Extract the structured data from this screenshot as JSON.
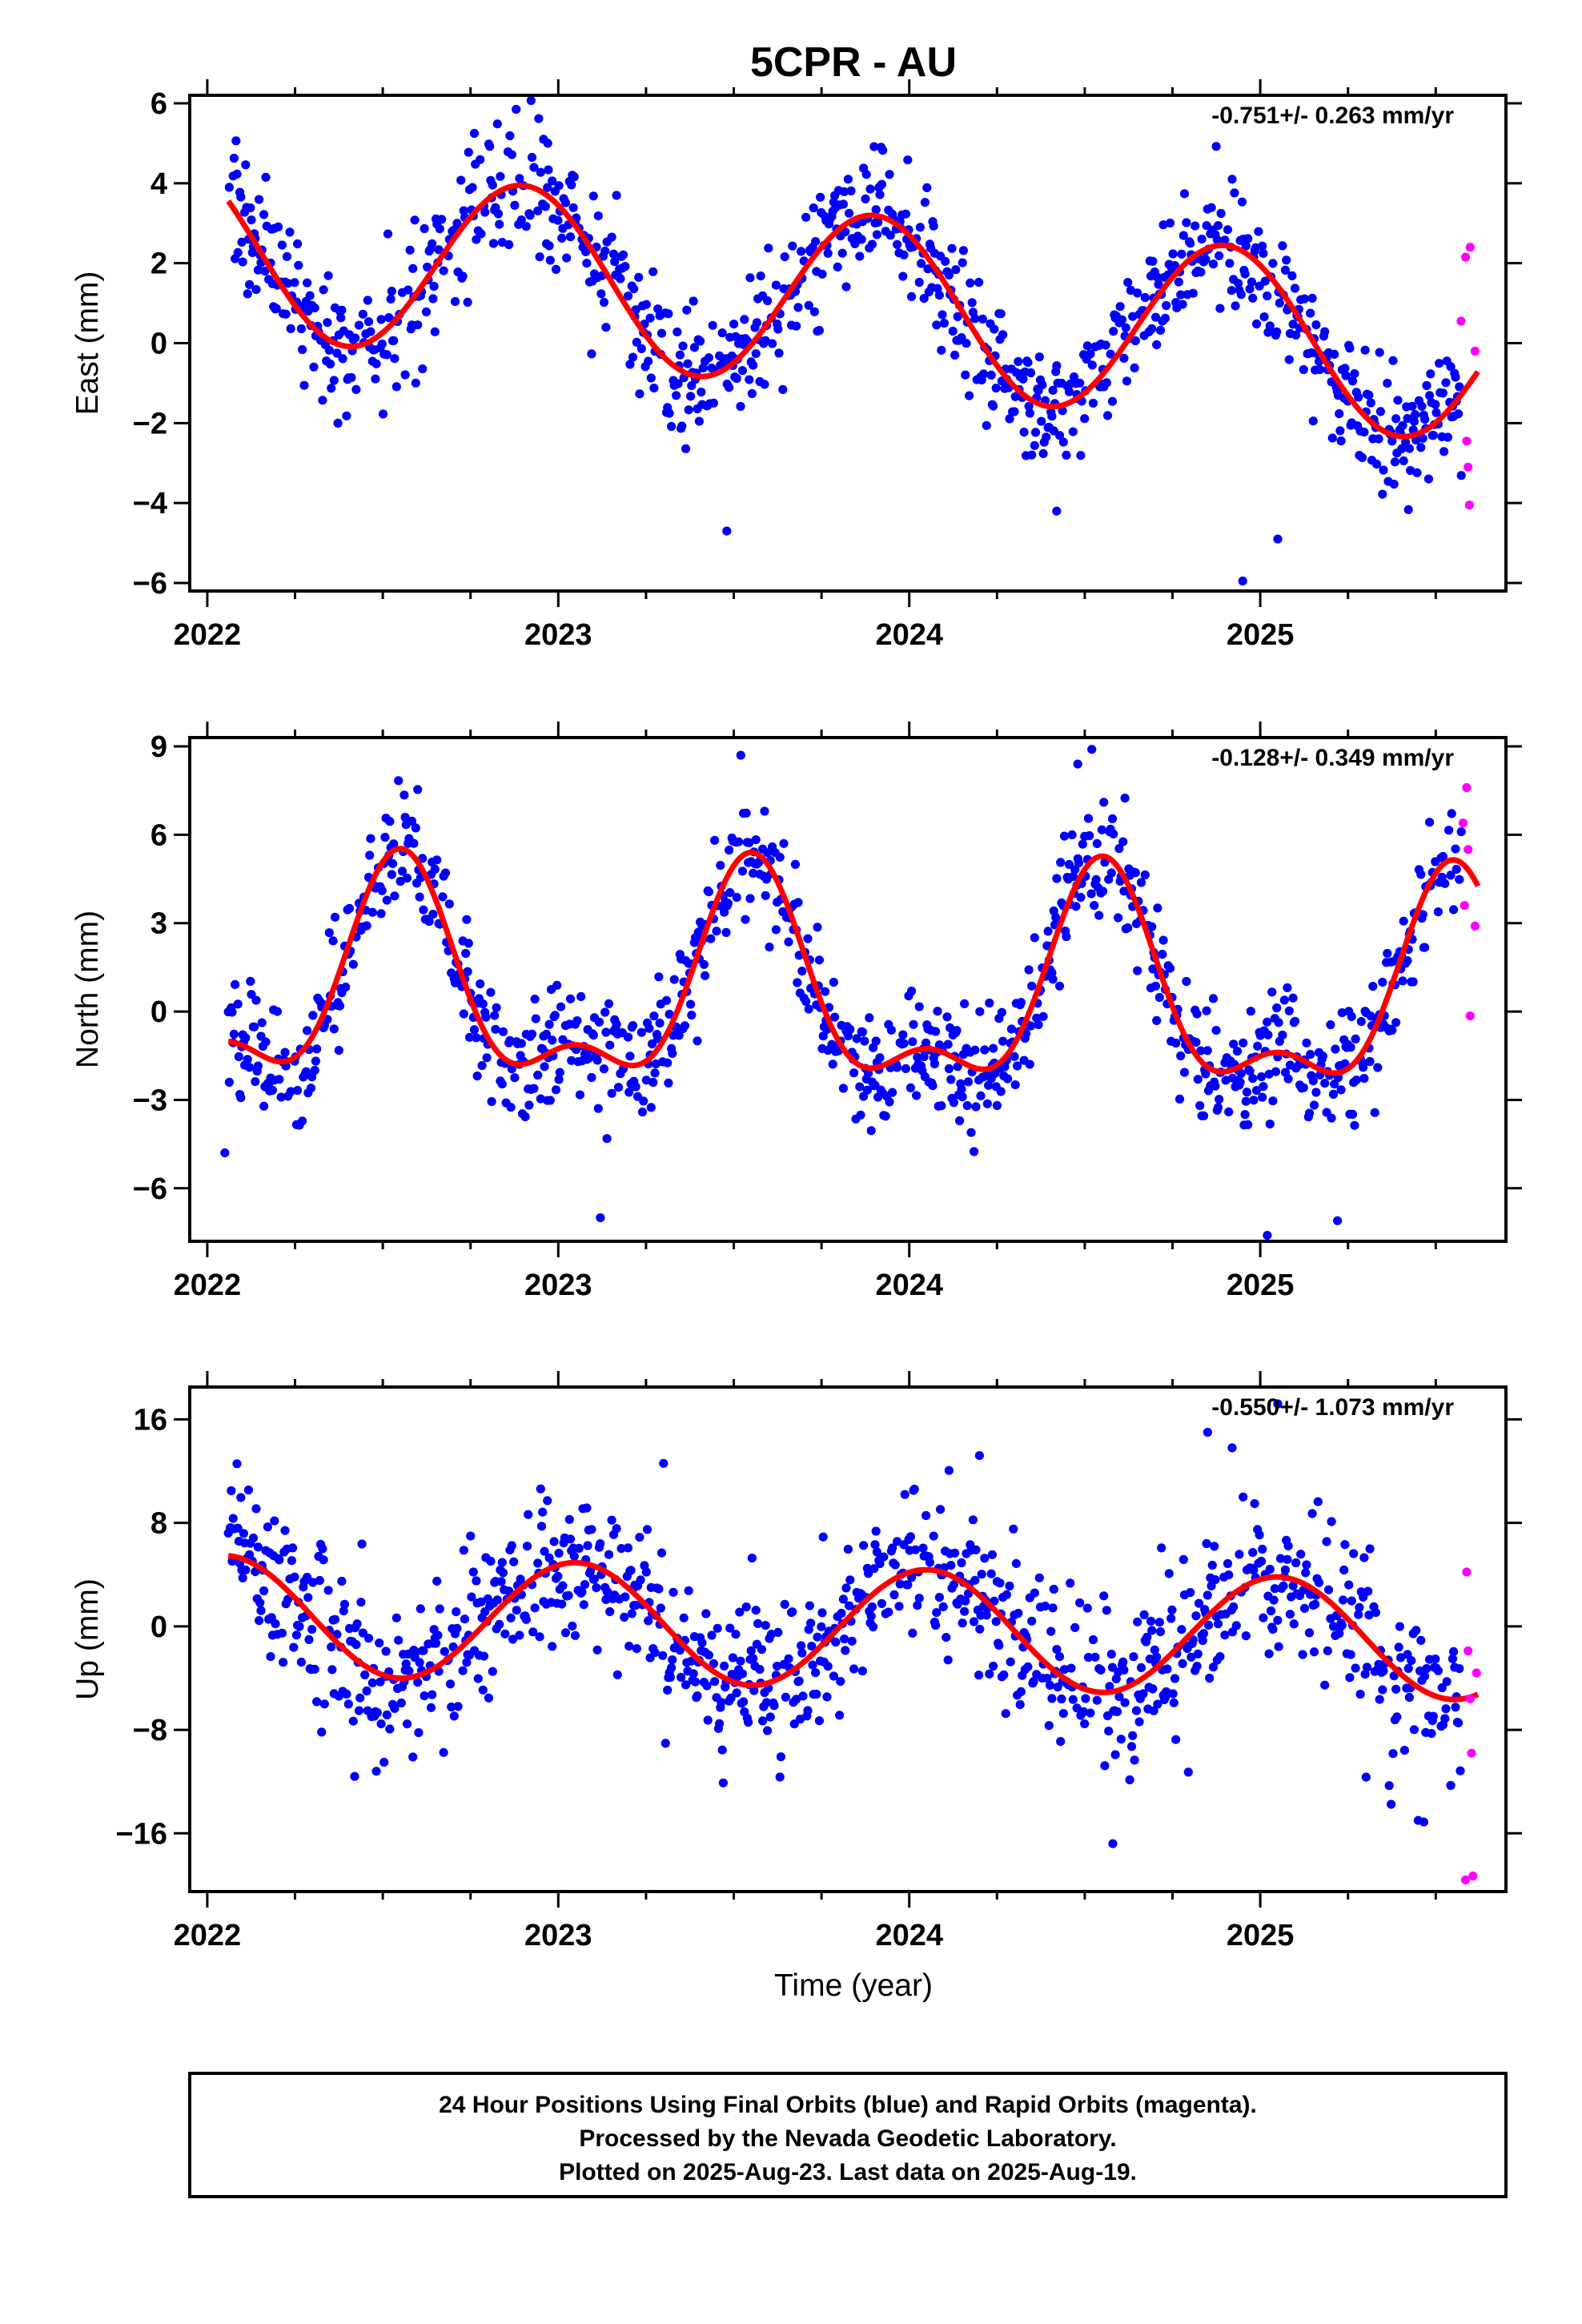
{
  "title": "5CPR - AU",
  "colors": {
    "final": "#0000ff",
    "rapid": "#ff00ff",
    "fit": "#ff0000",
    "frame": "#000000"
  },
  "xlabel": "Time (year)",
  "footer": {
    "line1": "24 Hour Positions Using Final Orbits (blue) and Rapid Orbits (magenta).",
    "line2": "Processed by the Nevada Geodetic Laboratory.",
    "line3": "Plotted on 2025-Aug-23. Last data on 2025-Aug-19."
  },
  "chart_data": [
    {
      "type": "scatter",
      "ylabel": "East (mm)",
      "rate": "-0.751+/- 0.263 mm/yr",
      "xlim": [
        2021.95,
        2025.7
      ],
      "ylim": [
        -6.2,
        6.2
      ],
      "xticks": [
        2022,
        2023,
        2024,
        2025
      ],
      "xtick_labels": [
        "2022",
        "2023",
        "2024",
        "2025"
      ],
      "yticks": [
        -6,
        -4,
        -2,
        0,
        2,
        4,
        6
      ],
      "ytick_labels": [
        "−6",
        "−4",
        "−2",
        "0",
        "2",
        "4",
        "6"
      ],
      "model": {
        "offset": 2.42,
        "trend": -0.751,
        "amp": 2.2,
        "peak": 0.9,
        "amp2": 0,
        "peak2": 0
      },
      "noise": 0.85,
      "outliers": [
        [
          2022.88,
          5.85
        ],
        [
          2022.97,
          5.0
        ],
        [
          2023.92,
          4.9
        ],
        [
          2024.92,
          4.1
        ],
        [
          2023.48,
          -4.7
        ],
        [
          2024.95,
          -5.95
        ],
        [
          2025.05,
          -4.9
        ],
        [
          2024.42,
          -4.2
        ]
      ],
      "rapid": [
        [
          2025.585,
          2.15
        ],
        [
          2025.598,
          2.4
        ],
        [
          2025.572,
          0.55
        ],
        [
          2025.612,
          -0.2
        ],
        [
          2025.588,
          -2.45
        ],
        [
          2025.592,
          -3.1
        ],
        [
          2025.596,
          -4.05
        ]
      ]
    },
    {
      "type": "scatter",
      "ylabel": "North (mm)",
      "rate": "-0.128+/- 0.349 mm/yr",
      "xlim": [
        2021.95,
        2025.7
      ],
      "ylim": [
        -7.8,
        9.3
      ],
      "xticks": [
        2022,
        2023,
        2024,
        2025
      ],
      "xtick_labels": [
        "2022",
        "2023",
        "2024",
        "2025"
      ],
      "yticks": [
        -6,
        -3,
        0,
        3,
        6,
        9
      ],
      "ytick_labels": [
        "−6",
        "−3",
        "0",
        "3",
        "6",
        "9"
      ],
      "model": {
        "offset": 0.75,
        "trend": -0.128,
        "amp": 3.3,
        "peak": 0.55,
        "amp2": 1.55,
        "peak2": 0.55
      },
      "noise": 1.0,
      "outliers": [
        [
          2023.52,
          8.7
        ],
        [
          2024.52,
          8.9
        ],
        [
          2024.48,
          8.4
        ],
        [
          2023.12,
          -7.0
        ],
        [
          2025.02,
          -7.6
        ],
        [
          2025.22,
          -7.1
        ],
        [
          2022.05,
          -4.8
        ]
      ],
      "rapid": [
        [
          2025.588,
          7.6
        ],
        [
          2025.578,
          6.4
        ],
        [
          2025.592,
          5.5
        ],
        [
          2025.582,
          3.6
        ],
        [
          2025.612,
          2.9
        ],
        [
          2025.598,
          -0.15
        ]
      ]
    },
    {
      "type": "scatter",
      "ylabel": "Up (mm)",
      "rate": "-0.550+/- 1.073 mm/yr",
      "xlim": [
        2021.95,
        2025.7
      ],
      "ylim": [
        -20.5,
        18.5
      ],
      "xticks": [
        2022,
        2023,
        2024,
        2025
      ],
      "xtick_labels": [
        "2022",
        "2023",
        "2024",
        "2025"
      ],
      "yticks": [
        -16,
        -8,
        0,
        8,
        16
      ],
      "ytick_labels": [
        "−16",
        "−8",
        "0",
        "8",
        "16"
      ],
      "model": {
        "offset": 0.9,
        "trend": -0.55,
        "amp": 4.6,
        "peak": 0.05,
        "amp2": 0,
        "peak2": 0
      },
      "noise": 3.1,
      "outliers": [
        [
          2025.05,
          17.2
        ],
        [
          2024.85,
          15.0
        ],
        [
          2024.92,
          13.8
        ],
        [
          2023.3,
          12.6
        ],
        [
          2024.2,
          13.2
        ],
        [
          2024.58,
          -16.8
        ],
        [
          2022.42,
          -11.6
        ],
        [
          2025.45,
          -15.0
        ]
      ],
      "rapid": [
        [
          2025.588,
          4.2
        ],
        [
          2025.592,
          -1.9
        ],
        [
          2025.598,
          -5.6
        ],
        [
          2025.602,
          -9.8
        ],
        [
          2025.606,
          -19.3
        ],
        [
          2025.585,
          -19.6
        ],
        [
          2025.616,
          -3.6
        ]
      ]
    }
  ]
}
